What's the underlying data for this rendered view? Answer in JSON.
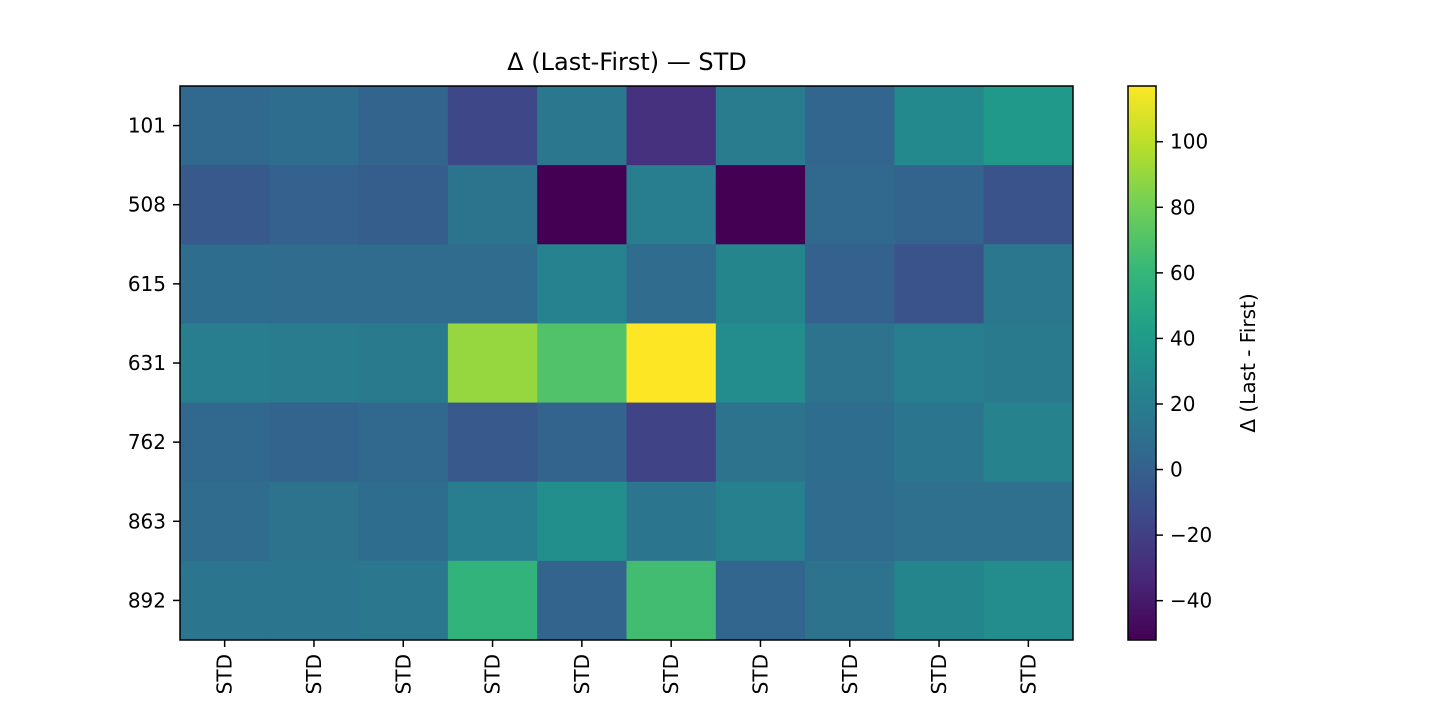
{
  "chart_data": {
    "type": "heatmap",
    "title": "Δ (Last-First) — STD",
    "x_tick_labels": [
      "STD",
      "STD",
      "STD",
      "STD",
      "STD",
      "STD",
      "STD",
      "STD",
      "STD",
      "STD"
    ],
    "y_tick_labels": [
      "101",
      "508",
      "615",
      "631",
      "762",
      "863",
      "892"
    ],
    "values": [
      [
        5,
        8,
        2,
        -15,
        15,
        -28,
        18,
        3,
        28,
        38
      ],
      [
        -5,
        0,
        -2,
        13,
        -52,
        20,
        -52,
        5,
        2,
        -8
      ],
      [
        8,
        7,
        7,
        7,
        23,
        7,
        25,
        0,
        -8,
        15
      ],
      [
        20,
        18,
        17,
        90,
        70,
        117,
        30,
        12,
        20,
        17
      ],
      [
        5,
        2,
        5,
        -5,
        2,
        -18,
        12,
        8,
        14,
        24
      ],
      [
        7,
        12,
        8,
        20,
        32,
        14,
        22,
        7,
        10,
        10
      ],
      [
        14,
        14,
        15,
        58,
        2,
        65,
        3,
        12,
        25,
        30
      ]
    ],
    "colorbar": {
      "label": "Δ (Last - First)",
      "range": [
        -52,
        117
      ],
      "ticks": [
        -40,
        -20,
        0,
        20,
        40,
        60,
        80,
        100
      ],
      "tick_labels": [
        "−40",
        "−20",
        "0",
        "20",
        "40",
        "60",
        "80",
        "100"
      ],
      "colormap": "viridis"
    },
    "grid": false
  },
  "colors": {
    "viridis_stops": [
      "#440154",
      "#482878",
      "#3e4989",
      "#31688e",
      "#26828e",
      "#1f9e89",
      "#35b779",
      "#6ece58",
      "#b5de2b",
      "#fde725"
    ]
  }
}
